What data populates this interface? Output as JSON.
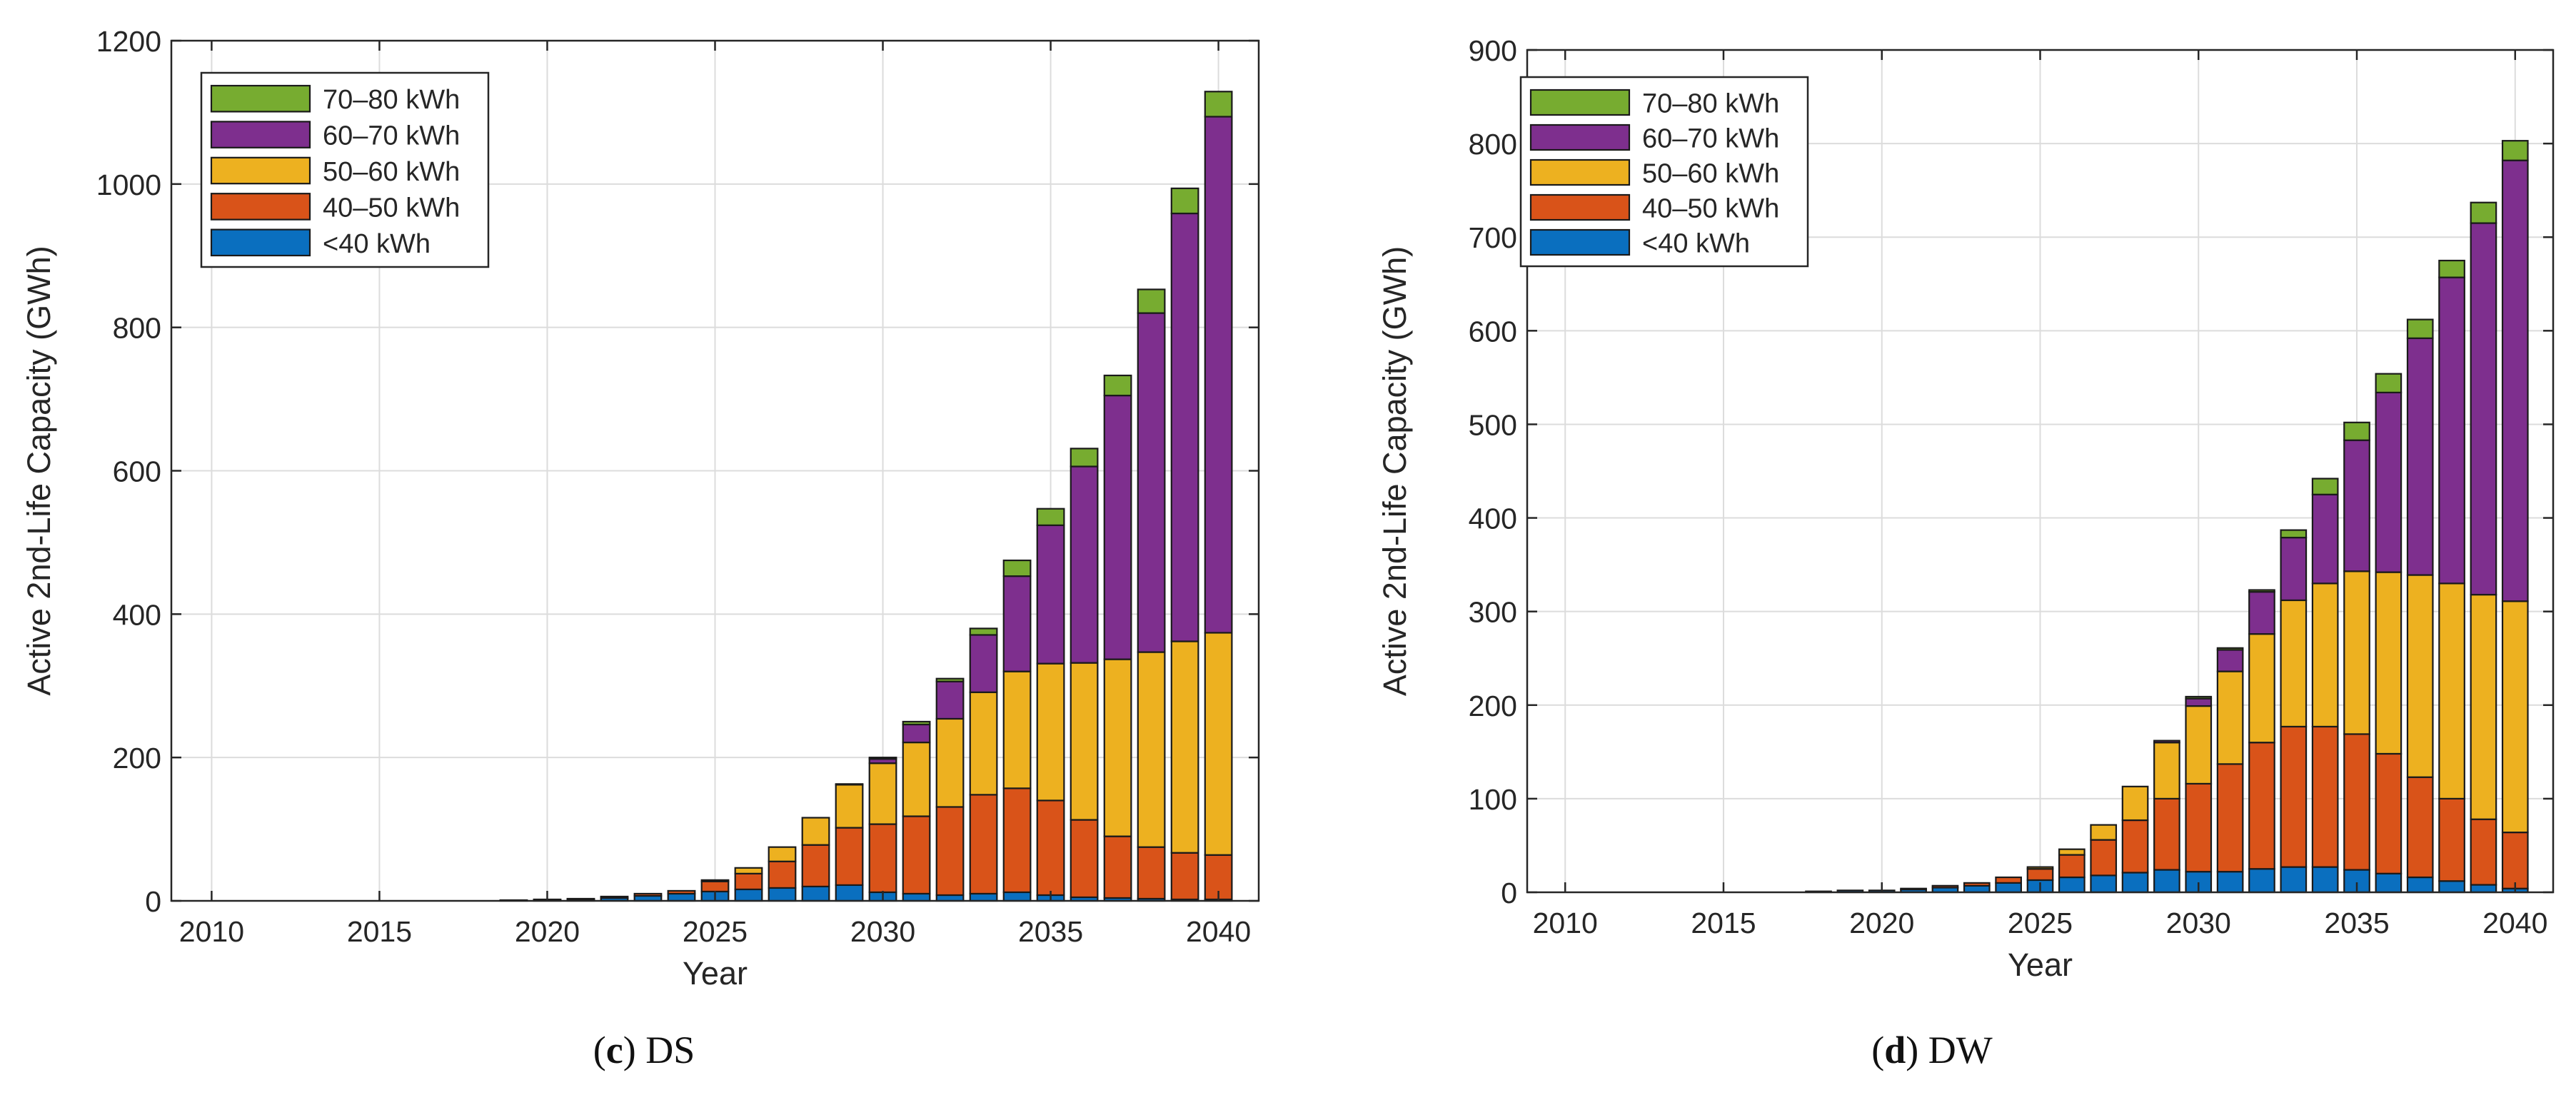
{
  "colors": {
    "lt40": "#0a6fbf",
    "k40_50": "#d95319",
    "k50_60": "#edb120",
    "k60_70": "#7e2f8e",
    "k70_80": "#77ac30"
  },
  "chart_data": [
    {
      "type": "bar",
      "stacked": true,
      "title": "",
      "xlabel": "Year",
      "ylabel": "Active 2nd-Life Capacity (GWh)",
      "xlim": [
        2008.8,
        2041.2
      ],
      "ylim": [
        0,
        1200
      ],
      "xticks": [
        2010,
        2015,
        2020,
        2025,
        2030,
        2035,
        2040
      ],
      "yticks": [
        0,
        200,
        400,
        600,
        800,
        1000,
        1200
      ],
      "grid": true,
      "legend_position": "top-left",
      "legend": [
        "70–80 kWh",
        "60–70 kWh",
        "50–60 kWh",
        "40–50 kWh",
        "<40 kWh"
      ],
      "categories": [
        2019,
        2020,
        2021,
        2022,
        2023,
        2024,
        2025,
        2026,
        2027,
        2028,
        2029,
        2030,
        2031,
        2032,
        2033,
        2034,
        2035,
        2036,
        2037,
        2038,
        2039,
        2040
      ],
      "series": [
        {
          "name": "<40 kWh",
          "color_key": "lt40",
          "values": [
            1,
            1,
            2,
            4,
            7,
            10,
            13,
            16,
            18,
            20,
            22,
            12,
            10,
            8,
            10,
            12,
            8,
            5,
            4,
            3,
            2,
            2
          ]
        },
        {
          "name": "40–50 kWh",
          "color_key": "k40_50",
          "values": [
            0,
            1,
            1,
            2,
            3,
            4,
            14,
            22,
            37,
            58,
            80,
            95,
            108,
            123,
            138,
            145,
            132,
            108,
            86,
            72,
            65,
            62
          ]
        },
        {
          "name": "50–60 kWh",
          "color_key": "k50_60",
          "values": [
            0,
            0,
            0,
            0,
            0,
            0,
            2,
            8,
            20,
            38,
            60,
            85,
            103,
            123,
            143,
            163,
            191,
            219,
            247,
            272,
            295,
            310
          ]
        },
        {
          "name": "60–70 kWh",
          "color_key": "k60_70",
          "values": [
            0,
            0,
            0,
            0,
            0,
            0,
            0,
            0,
            0,
            0,
            1,
            6,
            25,
            52,
            80,
            133,
            193,
            274,
            368,
            473,
            597,
            720
          ]
        },
        {
          "name": "70–80 kWh",
          "color_key": "k70_80",
          "values": [
            0,
            0,
            0,
            0,
            0,
            0,
            0,
            0,
            0,
            0,
            0,
            2,
            4,
            4,
            9,
            22,
            23,
            25,
            28,
            33,
            35,
            35
          ]
        }
      ],
      "caption_label": "c",
      "caption_text": " DS"
    },
    {
      "type": "bar",
      "stacked": true,
      "title": "",
      "xlabel": "Year",
      "ylabel": "Active 2nd-Life Capacity (GWh)",
      "xlim": [
        2008.8,
        2041.2
      ],
      "ylim": [
        0,
        900
      ],
      "xticks": [
        2010,
        2015,
        2020,
        2025,
        2030,
        2035,
        2040
      ],
      "yticks": [
        0,
        100,
        200,
        300,
        400,
        500,
        600,
        700,
        800,
        900
      ],
      "grid": true,
      "legend_position": "top-left",
      "legend": [
        "70–80 kWh",
        "60–70 kWh",
        "50–60 kWh",
        "40–50 kWh",
        "<40 kWh"
      ],
      "categories": [
        2018,
        2019,
        2020,
        2021,
        2022,
        2023,
        2024,
        2025,
        2026,
        2027,
        2028,
        2029,
        2030,
        2031,
        2032,
        2033,
        2034,
        2035,
        2036,
        2037,
        2038,
        2039,
        2040
      ],
      "series": [
        {
          "name": "<40 kWh",
          "color_key": "lt40",
          "values": [
            1,
            2,
            2,
            3,
            5,
            7,
            10,
            13,
            16,
            18,
            21,
            24,
            22,
            22,
            25,
            27,
            27,
            24,
            20,
            16,
            12,
            8,
            4
          ]
        },
        {
          "name": "40–50 kWh",
          "color_key": "k40_50",
          "values": [
            0,
            0,
            0,
            1,
            2,
            3,
            6,
            12,
            24,
            38,
            56,
            76,
            94,
            115,
            135,
            150,
            150,
            145,
            128,
            107,
            88,
            70,
            60
          ]
        },
        {
          "name": "50–60 kWh",
          "color_key": "k50_60",
          "values": [
            0,
            0,
            0,
            0,
            0,
            0,
            0,
            2,
            6,
            16,
            36,
            60,
            83,
            99,
            116,
            135,
            153,
            174,
            194,
            216,
            230,
            240,
            247
          ]
        },
        {
          "name": "60–70 kWh",
          "color_key": "k60_70",
          "values": [
            0,
            0,
            0,
            0,
            0,
            0,
            0,
            0,
            0,
            0,
            0,
            2,
            8,
            23,
            45,
            67,
            95,
            140,
            192,
            253,
            327,
            397,
            471
          ]
        },
        {
          "name": "70–80 kWh",
          "color_key": "k70_80",
          "values": [
            0,
            0,
            0,
            0,
            0,
            0,
            0,
            0,
            0,
            0,
            0,
            0,
            2,
            2,
            2,
            8,
            17,
            19,
            20,
            20,
            18,
            22,
            21
          ]
        }
      ],
      "caption_label": "d",
      "caption_text": " DW"
    }
  ]
}
